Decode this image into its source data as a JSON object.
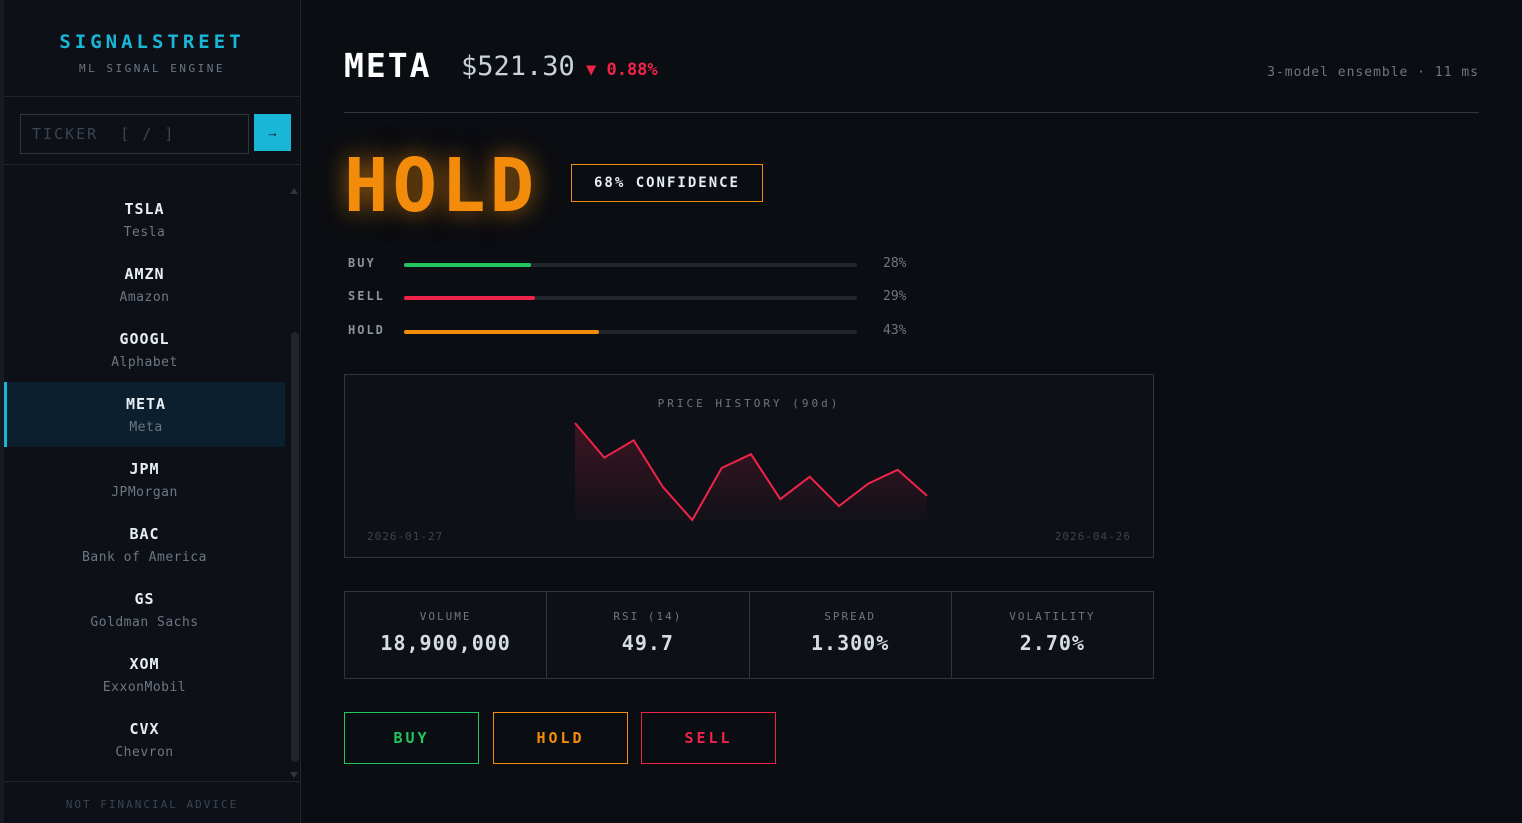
{
  "brand": {
    "title": "SIGNALSTREET",
    "subtitle": "ML SIGNAL ENGINE"
  },
  "search": {
    "placeholder": "TICKER  [ / ]",
    "value": "",
    "submit_icon": "→"
  },
  "tickers": [
    {
      "symbol": "TSLA",
      "name": "Tesla"
    },
    {
      "symbol": "AMZN",
      "name": "Amazon"
    },
    {
      "symbol": "GOOGL",
      "name": "Alphabet"
    },
    {
      "symbol": "META",
      "name": "Meta",
      "active": true
    },
    {
      "symbol": "JPM",
      "name": "JPMorgan"
    },
    {
      "symbol": "BAC",
      "name": "Bank of America"
    },
    {
      "symbol": "GS",
      "name": "Goldman Sachs"
    },
    {
      "symbol": "XOM",
      "name": "ExxonMobil"
    },
    {
      "symbol": "CVX",
      "name": "Chevron"
    }
  ],
  "footer": "NOT FINANCIAL ADVICE",
  "header": {
    "ticker": "META",
    "price": "$521.30",
    "change": "▼ 0.88%",
    "meta": "3-model ensemble · 11 ms"
  },
  "signal": {
    "label": "HOLD",
    "confidence": "68% CONFIDENCE"
  },
  "probabilities": [
    {
      "label": "BUY",
      "value": "28%",
      "fraction": 0.28,
      "color": "#22c55e"
    },
    {
      "label": "SELL",
      "value": "29%",
      "fraction": 0.29,
      "color": "#f0234a"
    },
    {
      "label": "HOLD",
      "value": "43%",
      "fraction": 0.43,
      "color": "#f28c0a"
    }
  ],
  "price_chart": {
    "title": "PRICE HISTORY (90d)",
    "start_date": "2026-01-27",
    "end_date": "2026-04-26",
    "line_color": "#f0234a",
    "values": [
      558,
      538,
      548,
      521,
      502,
      532,
      540,
      514,
      527,
      510,
      523,
      531,
      516
    ]
  },
  "stats": [
    {
      "label": "VOLUME",
      "value": "18,900,000"
    },
    {
      "label": "RSI (14)",
      "value": "49.7"
    },
    {
      "label": "SPREAD",
      "value": "1.300%"
    },
    {
      "label": "VOLATILITY",
      "value": "2.70%"
    }
  ],
  "actions": {
    "buy": "BUY",
    "hold": "HOLD",
    "sell": "SELL"
  },
  "colors": {
    "accent": "#19b6d8",
    "buy": "#22c55e",
    "sell": "#f0234a",
    "hold": "#f28c0a"
  }
}
